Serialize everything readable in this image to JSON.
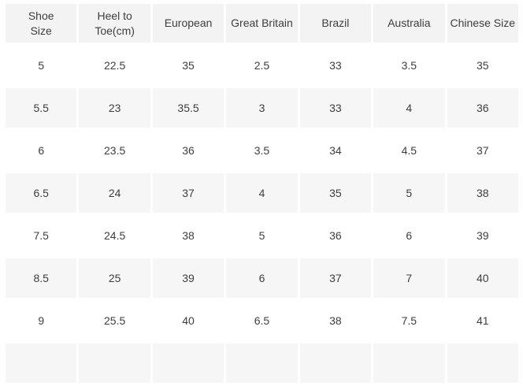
{
  "colors": {
    "page_bg": "#ffffff",
    "header_bg": "#f3f3f3",
    "stripe_bg": "#f6f6f6",
    "text": "#3e3e3e"
  },
  "chart_data": {
    "type": "table",
    "columns": [
      "Shoe Size",
      "Heel to Toe(cm)",
      "European",
      "Great Britain",
      "Brazil",
      "Australia",
      "Chinese Size"
    ],
    "rows": [
      [
        "5",
        "22.5",
        "35",
        "2.5",
        "33",
        "3.5",
        "35"
      ],
      [
        "5.5",
        "23",
        "35.5",
        "3",
        "33",
        "4",
        "36"
      ],
      [
        "6",
        "23.5",
        "36",
        "3.5",
        "34",
        "4.5",
        "37"
      ],
      [
        "6.5",
        "24",
        "37",
        "4",
        "35",
        "5",
        "38"
      ],
      [
        "7.5",
        "24.5",
        "38",
        "5",
        "36",
        "6",
        "39"
      ],
      [
        "8.5",
        "25",
        "39",
        "6",
        "37",
        "7",
        "40"
      ],
      [
        "9",
        "25.5",
        "40",
        "6.5",
        "38",
        "7.5",
        "41"
      ]
    ]
  }
}
